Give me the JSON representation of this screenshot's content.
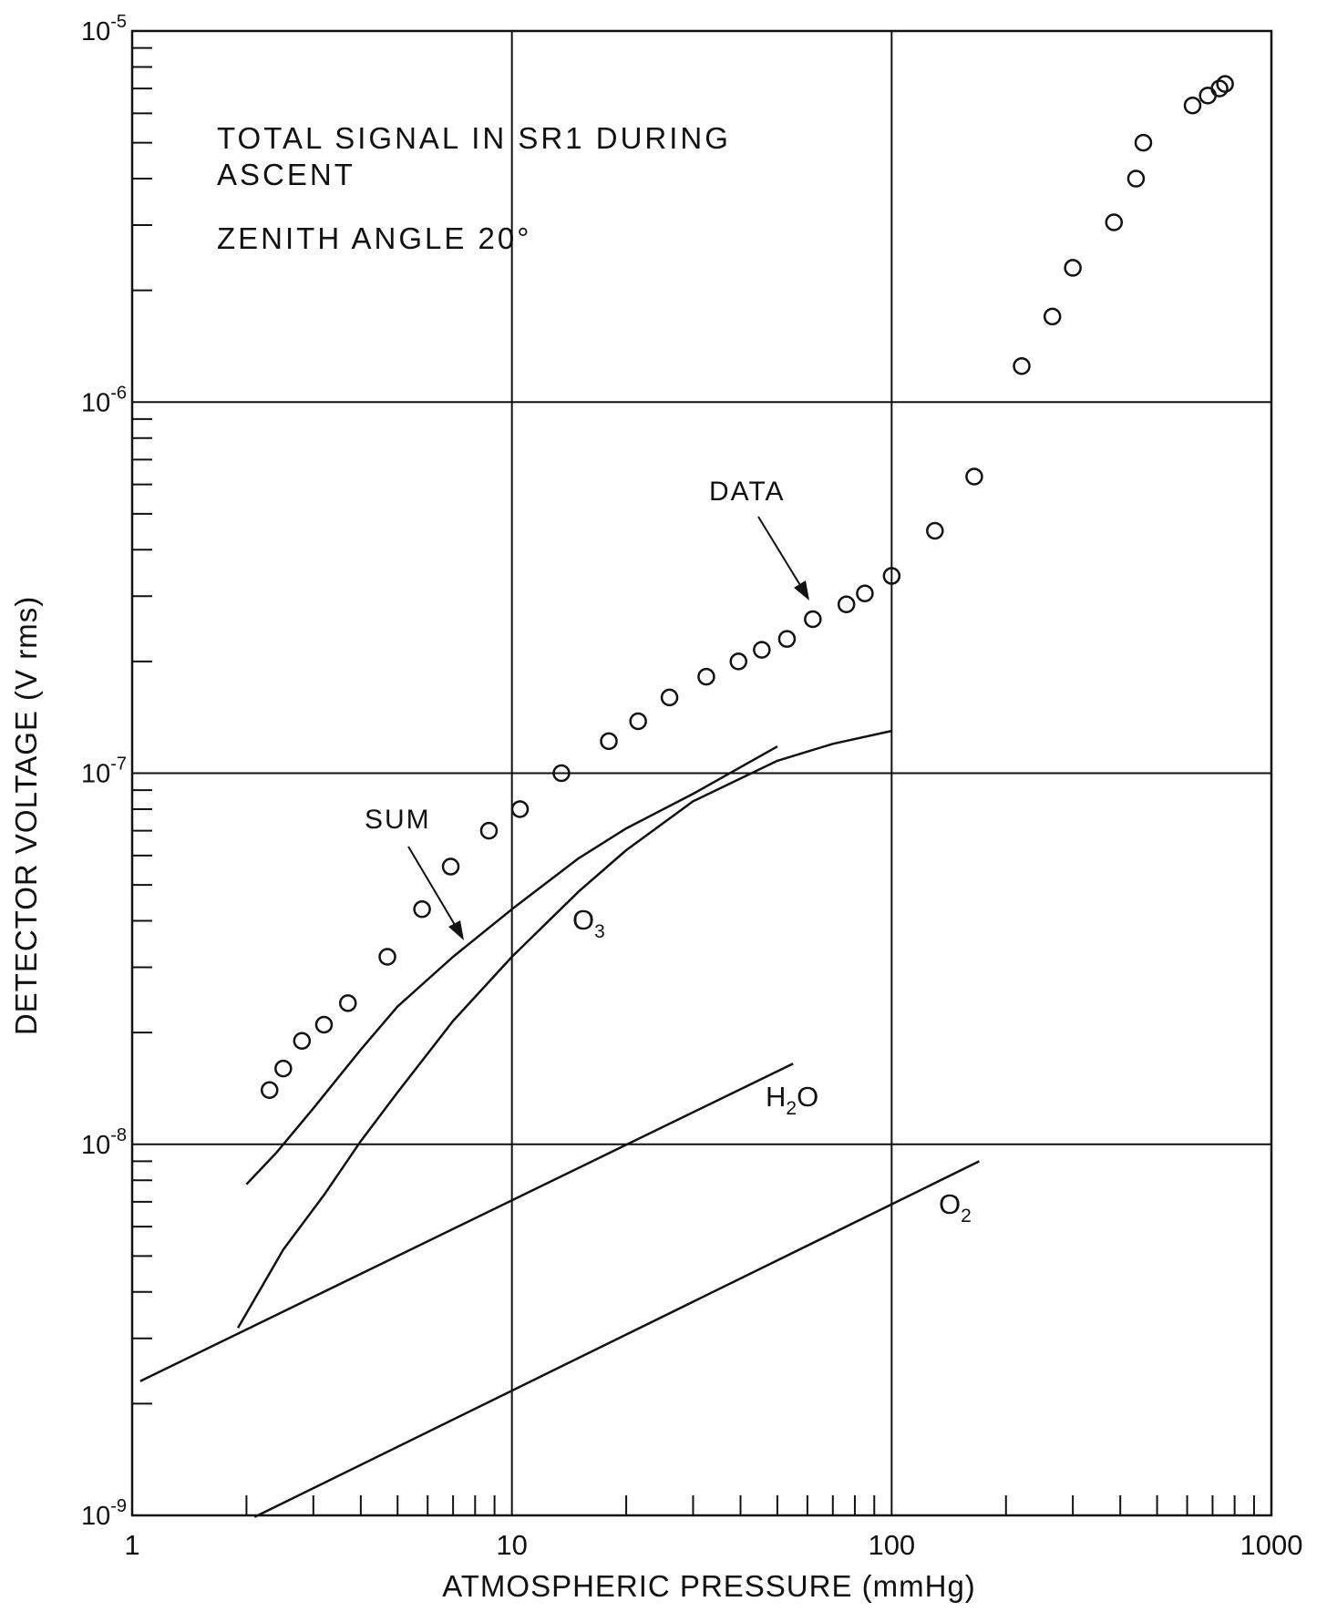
{
  "chart_data": {
    "type": "scatter",
    "scale": {
      "x": "log",
      "y": "log"
    },
    "xlim": [
      1,
      1000
    ],
    "ylim": [
      1e-09,
      1e-05
    ],
    "grid": true,
    "xlabel": "ATMOSPHERIC PRESSURE (mmHg)",
    "ylabel": "DETECTOR VOLTAGE (V rms)",
    "x_ticks": [
      {
        "value": 1,
        "label": "1"
      },
      {
        "value": 10,
        "label": "10"
      },
      {
        "value": 100,
        "label": "100"
      },
      {
        "value": 1000,
        "label": "1000"
      }
    ],
    "y_ticks": [
      {
        "value": 1e-09,
        "base": "10",
        "exp": "-9"
      },
      {
        "value": 1e-08,
        "base": "10",
        "exp": "-8"
      },
      {
        "value": 1e-07,
        "base": "10",
        "exp": "-7"
      },
      {
        "value": 1e-06,
        "base": "10",
        "exp": "-6"
      },
      {
        "value": 1e-05,
        "base": "10",
        "exp": "-5"
      }
    ],
    "annotations": {
      "title_line1": "TOTAL SIGNAL IN SR1 DURING",
      "title_line2": "ASCENT",
      "zenith": "ZENITH ANGLE 20°"
    },
    "series": [
      {
        "name": "DATA",
        "kind": "points",
        "x": [
          2.3,
          2.5,
          2.8,
          3.2,
          3.7,
          4.7,
          5.8,
          6.9,
          8.7,
          10.5,
          13.5,
          18,
          21.5,
          26,
          32.5,
          39.5,
          45.5,
          53,
          62,
          76,
          85,
          100,
          130,
          165,
          220,
          265,
          300,
          385,
          440,
          460,
          620,
          680,
          730,
          755
        ],
        "y": [
          1.4e-08,
          1.6e-08,
          1.9e-08,
          2.1e-08,
          2.4e-08,
          3.2e-08,
          4.3e-08,
          5.6e-08,
          7e-08,
          8e-08,
          1e-07,
          1.22e-07,
          1.38e-07,
          1.6e-07,
          1.82e-07,
          2e-07,
          2.15e-07,
          2.3e-07,
          2.6e-07,
          2.85e-07,
          3.05e-07,
          3.4e-07,
          4.5e-07,
          6.3e-07,
          1.25e-06,
          1.7e-06,
          2.3e-06,
          3.05e-06,
          4e-06,
          5e-06,
          6.3e-06,
          6.7e-06,
          7e-06,
          7.2e-06
        ]
      },
      {
        "name": "SUM",
        "kind": "line",
        "x": [
          2,
          2.4,
          3,
          4,
          5,
          7,
          10,
          15,
          20,
          30,
          50
        ],
        "y": [
          7.8e-09,
          9.5e-09,
          1.25e-08,
          1.8e-08,
          2.35e-08,
          3.2e-08,
          4.3e-08,
          5.9e-08,
          7.1e-08,
          8.8e-08,
          1.18e-07
        ]
      },
      {
        "name": "O3",
        "kind": "line",
        "x": [
          1.9,
          2.5,
          3.2,
          4,
          5,
          7,
          10,
          15,
          20,
          30,
          50,
          70,
          100
        ],
        "y": [
          3.2e-09,
          5.2e-09,
          7.3e-09,
          1.02e-08,
          1.38e-08,
          2.15e-08,
          3.2e-08,
          4.8e-08,
          6.2e-08,
          8.4e-08,
          1.08e-07,
          1.2e-07,
          1.3e-07
        ]
      },
      {
        "name": "H2O",
        "kind": "line",
        "x": [
          1.05,
          55
        ],
        "y": [
          2.3e-09,
          1.65e-08
        ]
      },
      {
        "name": "O2",
        "kind": "line",
        "x": [
          2.1,
          170
        ],
        "y": [
          9.9e-10,
          9e-09
        ]
      }
    ],
    "labels": {
      "data": "DATA",
      "sum": "SUM",
      "o3_base": "O",
      "o3_sub": "3",
      "h2o_a": "H",
      "h2o_sub": "2",
      "h2o_b": "O",
      "o2_base": "O",
      "o2_sub": "2"
    }
  }
}
